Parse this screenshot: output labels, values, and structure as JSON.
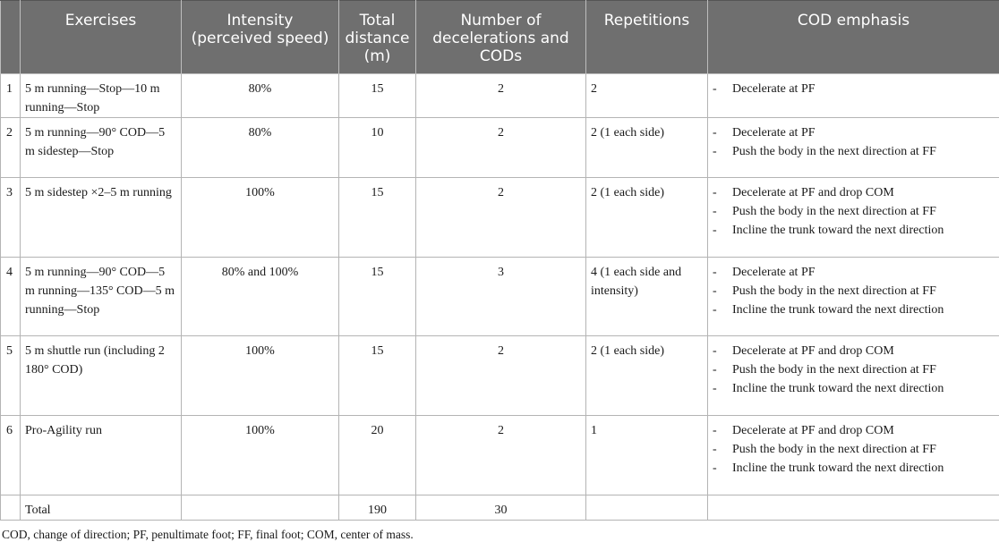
{
  "header": {
    "num": "",
    "exercises": "Exercises",
    "intensity": "Intensity (perceived speed)",
    "distance": "Total distance (m)",
    "decel": "Number of decelerations and CODs",
    "reps": "Repetitions",
    "emphasis": "COD emphasis"
  },
  "rows": [
    {
      "num": "1",
      "exercise": "5 m running—Stop—10 m running—Stop",
      "intensity": "80%",
      "distance": "15",
      "decel": "2",
      "reps": "2",
      "emphasis": [
        "Decelerate at PF"
      ]
    },
    {
      "num": "2",
      "exercise": "5 m running—90° COD—5 m sidestep—Stop",
      "intensity": "80%",
      "distance": "10",
      "decel": "2",
      "reps": "2 (1 each side)",
      "emphasis": [
        "Decelerate at PF",
        "Push the body in the next direction at FF"
      ]
    },
    {
      "num": "3",
      "exercise": "5 m sidestep ×2–5 m running",
      "intensity": "100%",
      "distance": "15",
      "decel": "2",
      "reps": "2 (1 each side)",
      "emphasis": [
        "Decelerate at PF and drop COM",
        "Push the body in the next direction at FF",
        "Incline the trunk toward the next direction"
      ]
    },
    {
      "num": "4",
      "exercise": "5 m running—90° COD—5 m running—135° COD—5 m running—Stop",
      "intensity": "80% and 100%",
      "distance": "15",
      "decel": "3",
      "reps": "4 (1 each side and intensity)",
      "emphasis": [
        "Decelerate at PF",
        "Push the body in the next direction at FF",
        "Incline the trunk toward the next direction"
      ]
    },
    {
      "num": "5",
      "exercise": "5 m shuttle run (including 2 180° COD)",
      "intensity": "100%",
      "distance": "15",
      "decel": "2",
      "reps": "2 (1 each side)",
      "emphasis": [
        "Decelerate at PF and drop COM",
        "Push the body in the next direction at FF",
        "Incline the trunk toward the next direction"
      ]
    },
    {
      "num": "6",
      "exercise": "Pro-Agility run",
      "intensity": "100%",
      "distance": "20",
      "decel": "2",
      "reps": "1",
      "emphasis": [
        "Decelerate at PF and drop COM",
        "Push the body in the next direction at FF",
        "Incline the trunk toward the next direction"
      ]
    }
  ],
  "total": {
    "label": "Total",
    "distance": "190",
    "decel": "30"
  },
  "dash": "-",
  "footnote": "COD, change of direction; PF, penultimate foot; FF, final foot; COM, center of mass."
}
